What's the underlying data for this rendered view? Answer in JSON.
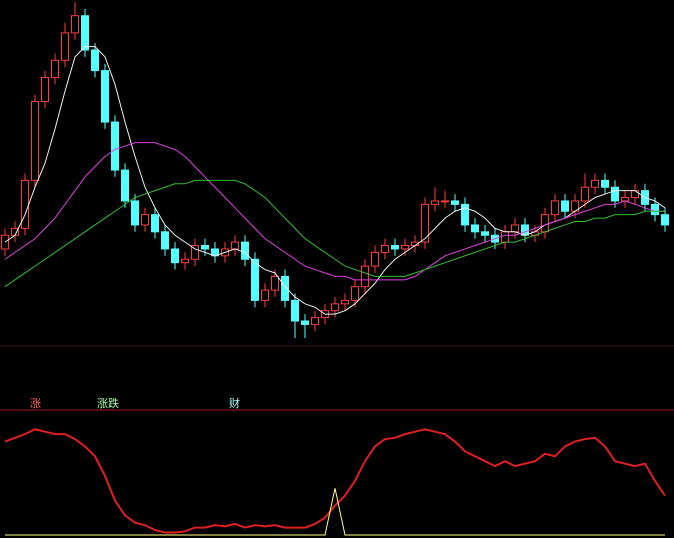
{
  "chart_data": [
    {
      "type": "candlestick",
      "up_color": "#ff3c3c",
      "down_color": "#54ffff",
      "ylim": [
        0,
        100
      ],
      "open": [
        28,
        32,
        34,
        48,
        71,
        78,
        83,
        91,
        96,
        86,
        80,
        65,
        51,
        42,
        35,
        38,
        33,
        28,
        24,
        25,
        29,
        28,
        26,
        28,
        30,
        25,
        13,
        16,
        20,
        13,
        7,
        6,
        8,
        10,
        12,
        13,
        17,
        23,
        27,
        29,
        28,
        29,
        30,
        41,
        42,
        42,
        41,
        35,
        33,
        32,
        30,
        33,
        35,
        32,
        33,
        38,
        42,
        39,
        42,
        46,
        48,
        46,
        42,
        43,
        45,
        41,
        38
      ],
      "high": [
        34,
        36,
        50,
        73,
        80,
        85,
        94,
        100,
        98,
        88,
        82,
        67,
        53,
        44,
        40,
        40,
        35,
        30,
        27,
        31,
        31,
        30,
        30,
        32,
        32,
        27,
        18,
        22,
        22,
        15,
        9,
        10,
        12,
        14,
        15,
        19,
        25,
        29,
        31,
        31,
        31,
        32,
        43,
        46,
        45,
        44,
        43,
        37,
        35,
        34,
        35,
        37,
        37,
        35,
        40,
        44,
        44,
        44,
        50,
        50,
        50,
        48,
        45,
        47,
        47,
        43,
        40
      ],
      "low": [
        26,
        30,
        32,
        46,
        69,
        76,
        81,
        89,
        84,
        78,
        63,
        49,
        40,
        33,
        33,
        31,
        26,
        22,
        22,
        23,
        26,
        24,
        24,
        26,
        23,
        11,
        11,
        14,
        11,
        2,
        2,
        4,
        6,
        8,
        10,
        11,
        15,
        21,
        25,
        26,
        26,
        27,
        28,
        39,
        40,
        39,
        33,
        31,
        30,
        28,
        28,
        31,
        30,
        30,
        31,
        36,
        37,
        37,
        40,
        44,
        44,
        40,
        40,
        41,
        39,
        36,
        33
      ],
      "close": [
        32,
        34,
        48,
        71,
        78,
        83,
        91,
        96,
        86,
        80,
        65,
        51,
        42,
        35,
        38,
        33,
        28,
        24,
        25,
        29,
        28,
        26,
        28,
        30,
        25,
        13,
        16,
        20,
        13,
        7,
        6,
        8,
        10,
        12,
        13,
        17,
        23,
        27,
        29,
        28,
        29,
        30,
        41,
        42,
        42,
        41,
        35,
        33,
        32,
        30,
        33,
        35,
        32,
        33,
        38,
        42,
        39,
        42,
        46,
        48,
        46,
        42,
        43,
        45,
        41,
        38,
        35
      ],
      "series": [
        {
          "color": "#f0f0f0",
          "values": [
            30,
            32,
            38,
            46,
            53,
            63,
            74,
            84,
            87,
            87,
            84,
            76,
            65,
            55,
            46,
            40,
            35,
            32,
            30,
            28,
            27,
            26,
            27,
            28,
            27,
            24,
            22,
            21,
            17,
            14,
            12,
            11,
            9,
            9,
            10,
            12,
            15,
            18,
            22,
            25,
            27,
            29,
            31,
            34,
            37,
            39,
            40,
            39,
            37,
            34,
            33,
            33,
            32,
            33,
            35,
            36,
            37,
            39,
            41,
            43,
            44,
            45,
            45,
            45,
            43,
            42,
            40
          ]
        },
        {
          "color": "#e040e0",
          "values": [
            25,
            27,
            29,
            31,
            34,
            37,
            41,
            45,
            49,
            52,
            55,
            57,
            58,
            59,
            59,
            59,
            58,
            57,
            55,
            52,
            49,
            46,
            43,
            40,
            37,
            34,
            31,
            29,
            27,
            25,
            23,
            22,
            21,
            20,
            20,
            19,
            19,
            19,
            19,
            19,
            19,
            20,
            22,
            24,
            26,
            27,
            28,
            29,
            30,
            31,
            32,
            32,
            33,
            34,
            35,
            36,
            37,
            38,
            39,
            40,
            41,
            41,
            42,
            41,
            40,
            39,
            39
          ]
        },
        {
          "color": "#30c030",
          "values": [
            17,
            19,
            21,
            23,
            25,
            27,
            29,
            31,
            33,
            35,
            37,
            39,
            41,
            43,
            44,
            45,
            46,
            47,
            47,
            48,
            48,
            48,
            48,
            48,
            47,
            45,
            43,
            40,
            37,
            34,
            31,
            29,
            27,
            25,
            23,
            22,
            21,
            20,
            20,
            20,
            20,
            21,
            22,
            23,
            24,
            25,
            26,
            27,
            28,
            29,
            30,
            30,
            31,
            32,
            33,
            34,
            35,
            36,
            36,
            37,
            37,
            38,
            38,
            38,
            39,
            39,
            39
          ]
        }
      ]
    },
    {
      "type": "line",
      "annotations": [
        "涨",
        "涨跌",
        "财"
      ],
      "ylim": [
        0,
        100
      ],
      "series": [
        {
          "color": "#e02020",
          "values": [
            76,
            79,
            82,
            86,
            84,
            82,
            82,
            78,
            72,
            64,
            48,
            28,
            16,
            10,
            8,
            4,
            2,
            2,
            3,
            6,
            6,
            8,
            7,
            9,
            6,
            8,
            7,
            8,
            6,
            6,
            6,
            9,
            14,
            24,
            32,
            44,
            60,
            72,
            78,
            79,
            82,
            84,
            86,
            84,
            82,
            76,
            68,
            64,
            60,
            56,
            60,
            56,
            58,
            60,
            66,
            64,
            72,
            76,
            78,
            79,
            72,
            60,
            58,
            56,
            58,
            44,
            32
          ]
        },
        {
          "color": "#ffff80",
          "values": [
            0,
            0,
            0,
            0,
            0,
            0,
            0,
            0,
            0,
            0,
            0,
            0,
            0,
            0,
            0,
            0,
            0,
            0,
            0,
            0,
            0,
            0,
            0,
            0,
            0,
            0,
            0,
            0,
            0,
            0,
            0,
            0,
            0,
            38,
            0,
            0,
            0,
            0,
            0,
            0,
            0,
            0,
            0,
            0,
            0,
            0,
            0,
            0,
            0,
            0,
            0,
            0,
            0,
            0,
            0,
            0,
            0,
            0,
            0,
            0,
            0,
            0,
            0,
            0,
            0,
            0,
            0
          ]
        }
      ]
    }
  ]
}
